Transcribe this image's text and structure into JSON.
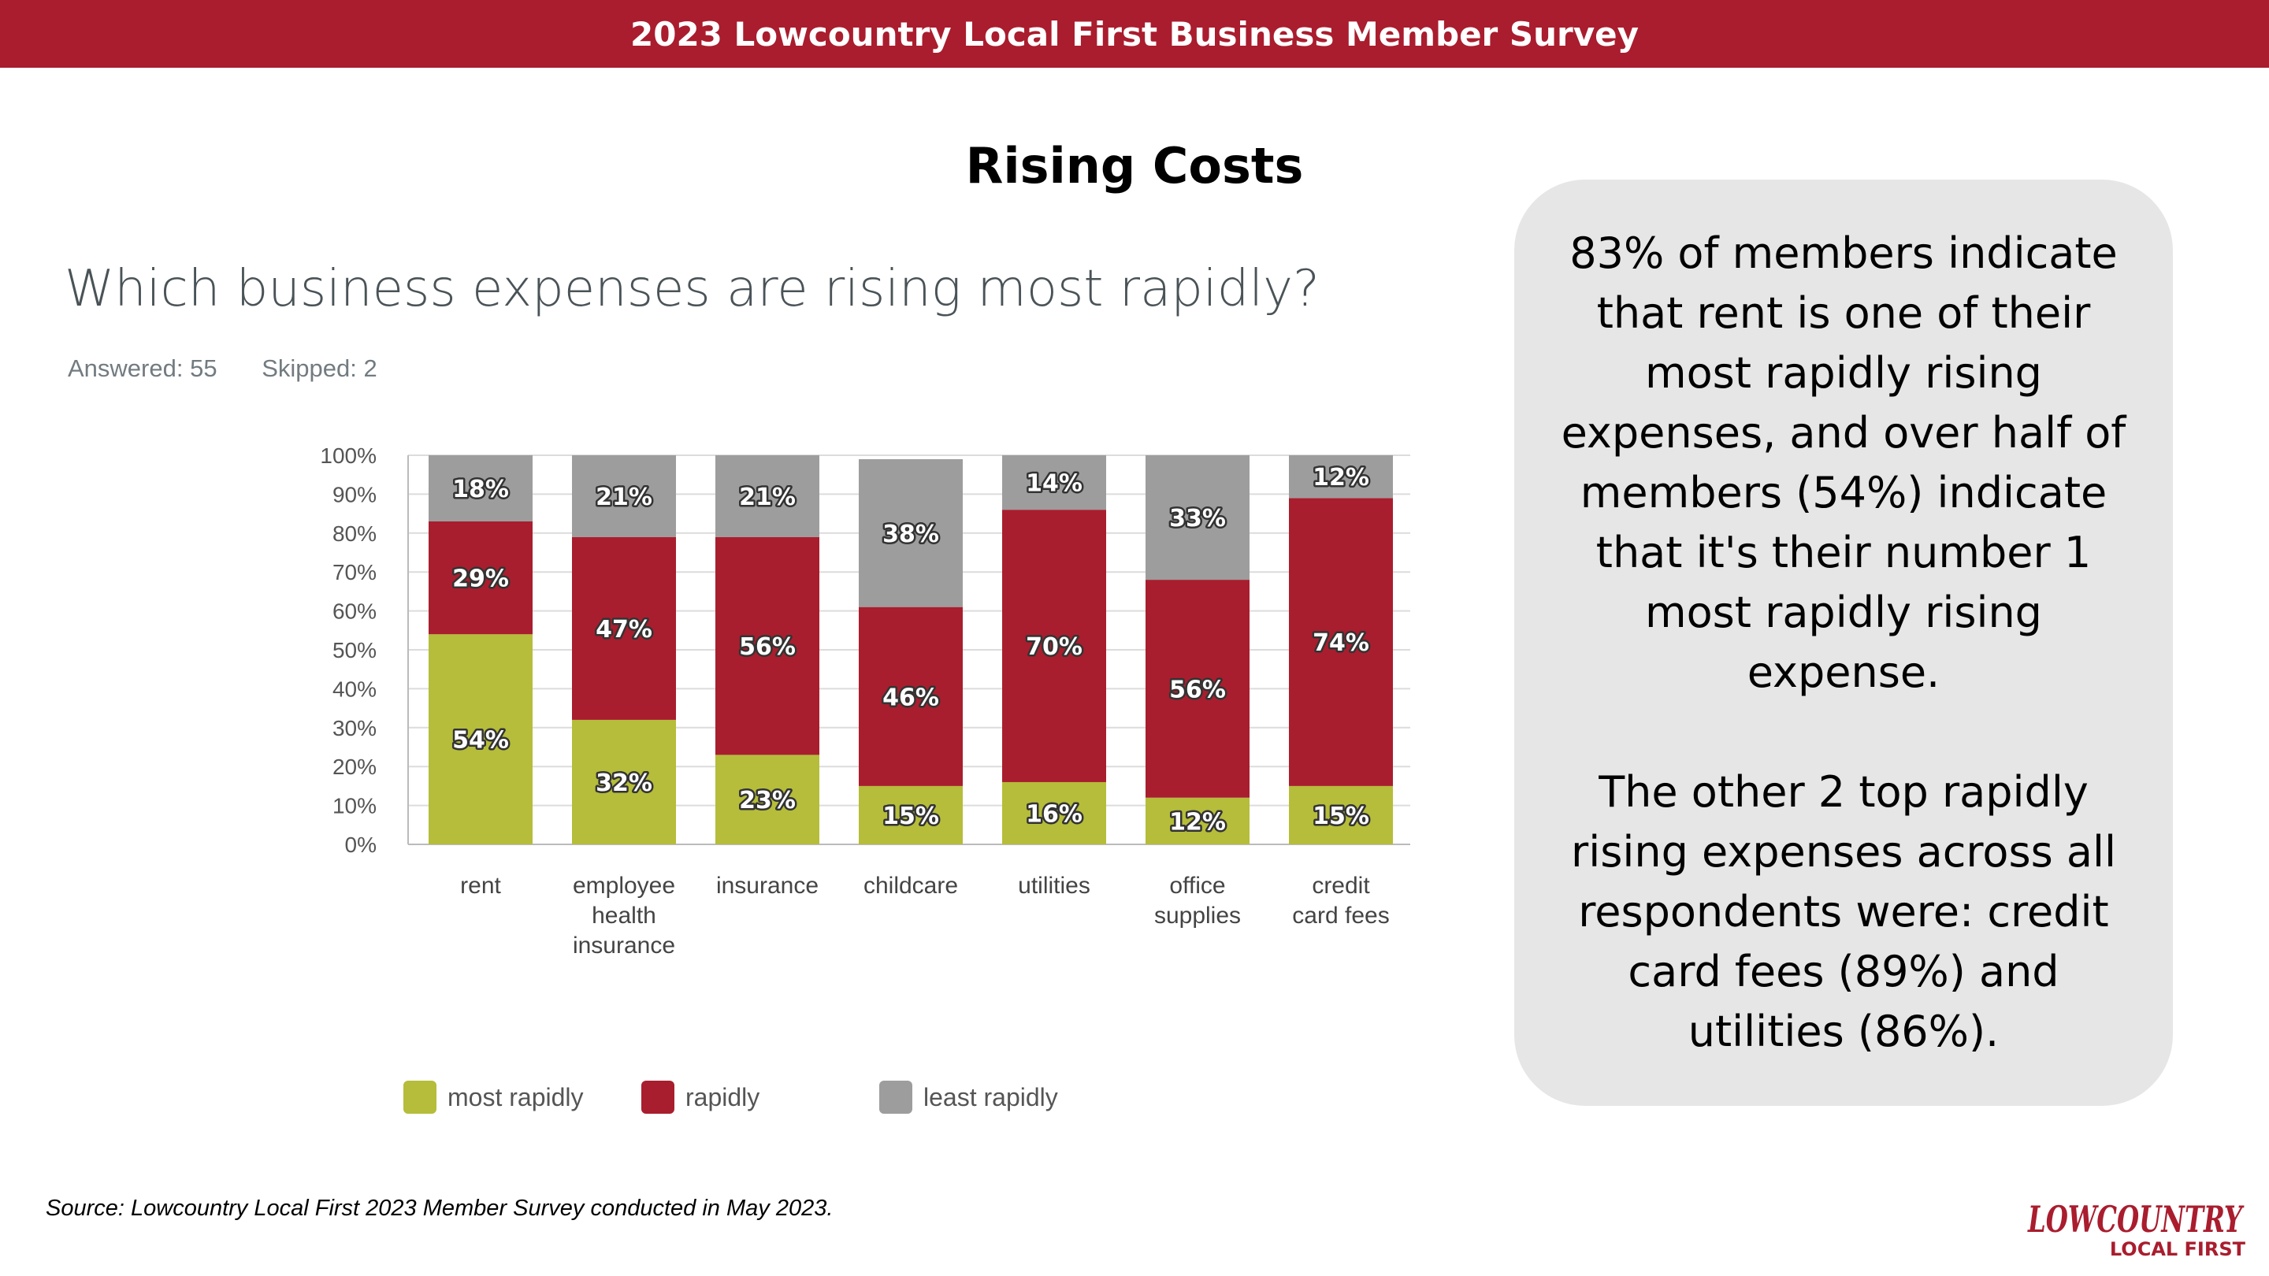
{
  "header": {
    "title": "2023 Lowcountry Local First Business Member Survey"
  },
  "slide": {
    "title": "Rising Costs"
  },
  "survey": {
    "question": "Which business expenses are rising most rapidly?",
    "answered": "Answered: 55",
    "skipped": "Skipped: 2"
  },
  "chart_data": {
    "type": "bar",
    "stacked": true,
    "categories": [
      [
        "rent"
      ],
      [
        "employee",
        "health",
        "insurance"
      ],
      [
        "insurance"
      ],
      [
        "childcare"
      ],
      [
        "utilities"
      ],
      [
        "office",
        "supplies"
      ],
      [
        "credit",
        "card fees"
      ]
    ],
    "series": [
      {
        "name": "most rapidly",
        "color": "#b5bd3a",
        "values": [
          54,
          32,
          23,
          15,
          16,
          12,
          15
        ]
      },
      {
        "name": "rapidly",
        "color": "#a81e2e",
        "values": [
          29,
          47,
          56,
          46,
          70,
          56,
          74
        ]
      },
      {
        "name": "least rapidly",
        "color": "#9d9d9d",
        "values": [
          18,
          21,
          21,
          38,
          14,
          33,
          12
        ]
      }
    ],
    "ylim": [
      0,
      100
    ],
    "y_ticks": [
      "0%",
      "10%",
      "20%",
      "30%",
      "40%",
      "50%",
      "60%",
      "70%",
      "80%",
      "90%",
      "100%"
    ],
    "grid": true,
    "legend_position": "bottom"
  },
  "callout": {
    "paragraph1": "83% of members indicate that rent is one of their most rapidly rising expenses, and over half of members (54%) indicate that it's their number 1 most rapidly rising expense.",
    "paragraph2": "The other 2 top rapidly rising expenses across all respondents were: credit card fees (89%) and utilities (86%)."
  },
  "footer": {
    "source": "Source: Lowcountry Local First 2023 Member Survey conducted in May 2023."
  },
  "logo": {
    "line1": "LOWCOUNTRY",
    "line2": "LOCAL FIRST",
    "color": "#a91d2e"
  }
}
